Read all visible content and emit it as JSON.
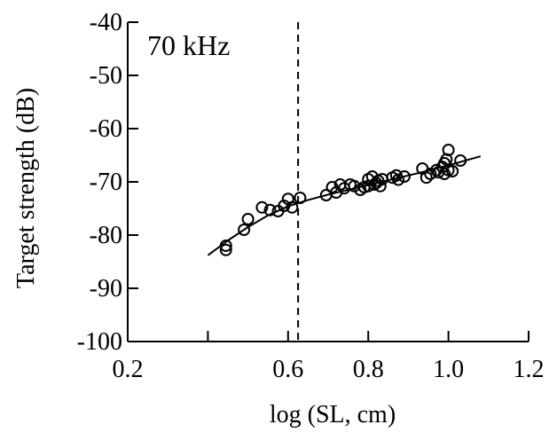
{
  "chart_data": {
    "type": "scatter",
    "annotation": "70 kHz",
    "xlabel": "log (SL, cm)",
    "ylabel": "Target strength (dB)",
    "xlim": [
      0.2,
      1.2
    ],
    "ylim": [
      -100,
      -40
    ],
    "x_ticks": [
      0.2,
      0.4,
      0.6,
      0.8,
      1.0,
      1.2
    ],
    "x_tick_labels": [
      "0.2",
      "",
      "0.6",
      "0.8",
      "1.0",
      "1.2"
    ],
    "y_ticks": [
      -40,
      -50,
      -60,
      -70,
      -80,
      -90,
      -100
    ],
    "y_tick_labels": [
      "-40",
      "-50",
      "-60",
      "-70",
      "-80",
      "-90",
      "-100"
    ],
    "grid": false,
    "reference_line": {
      "x": 0.625,
      "style": "dashed"
    },
    "points": [
      {
        "x": 0.445,
        "y": -82.0
      },
      {
        "x": 0.445,
        "y": -82.8
      },
      {
        "x": 0.49,
        "y": -79.0
      },
      {
        "x": 0.5,
        "y": -77.0
      },
      {
        "x": 0.535,
        "y": -74.8
      },
      {
        "x": 0.555,
        "y": -75.3
      },
      {
        "x": 0.575,
        "y": -75.5
      },
      {
        "x": 0.59,
        "y": -74.5
      },
      {
        "x": 0.6,
        "y": -73.2
      },
      {
        "x": 0.61,
        "y": -74.8
      },
      {
        "x": 0.63,
        "y": -73.0
      },
      {
        "x": 0.695,
        "y": -72.5
      },
      {
        "x": 0.71,
        "y": -71.0
      },
      {
        "x": 0.72,
        "y": -72.0
      },
      {
        "x": 0.73,
        "y": -70.5
      },
      {
        "x": 0.74,
        "y": -71.2
      },
      {
        "x": 0.755,
        "y": -70.5
      },
      {
        "x": 0.765,
        "y": -70.8
      },
      {
        "x": 0.78,
        "y": -71.5
      },
      {
        "x": 0.79,
        "y": -71.0
      },
      {
        "x": 0.8,
        "y": -69.5
      },
      {
        "x": 0.8,
        "y": -70.8
      },
      {
        "x": 0.81,
        "y": -69.0
      },
      {
        "x": 0.815,
        "y": -70.5
      },
      {
        "x": 0.82,
        "y": -70.2
      },
      {
        "x": 0.825,
        "y": -69.8
      },
      {
        "x": 0.83,
        "y": -70.8
      },
      {
        "x": 0.835,
        "y": -69.5
      },
      {
        "x": 0.86,
        "y": -69.2
      },
      {
        "x": 0.87,
        "y": -68.8
      },
      {
        "x": 0.875,
        "y": -69.6
      },
      {
        "x": 0.89,
        "y": -69.0
      },
      {
        "x": 0.935,
        "y": -67.5
      },
      {
        "x": 0.945,
        "y": -69.2
      },
      {
        "x": 0.955,
        "y": -68.5
      },
      {
        "x": 0.97,
        "y": -67.8
      },
      {
        "x": 0.975,
        "y": -68.2
      },
      {
        "x": 0.985,
        "y": -67.2
      },
      {
        "x": 0.99,
        "y": -66.5
      },
      {
        "x": 0.99,
        "y": -68.5
      },
      {
        "x": 0.995,
        "y": -65.8
      },
      {
        "x": 1.0,
        "y": -67.8
      },
      {
        "x": 1.0,
        "y": -64.0
      },
      {
        "x": 1.01,
        "y": -68.0
      },
      {
        "x": 1.03,
        "y": -66.0
      }
    ],
    "fit_curve": [
      {
        "x": 0.4,
        "y": -83.8
      },
      {
        "x": 0.45,
        "y": -81.0
      },
      {
        "x": 0.5,
        "y": -78.5
      },
      {
        "x": 0.55,
        "y": -76.3
      },
      {
        "x": 0.6,
        "y": -74.6
      },
      {
        "x": 0.65,
        "y": -73.4
      },
      {
        "x": 0.7,
        "y": -72.4
      },
      {
        "x": 0.75,
        "y": -71.5
      },
      {
        "x": 0.8,
        "y": -70.6
      },
      {
        "x": 0.85,
        "y": -69.7
      },
      {
        "x": 0.9,
        "y": -68.8
      },
      {
        "x": 0.95,
        "y": -67.9
      },
      {
        "x": 1.0,
        "y": -66.9
      },
      {
        "x": 1.08,
        "y": -65.2
      }
    ]
  }
}
